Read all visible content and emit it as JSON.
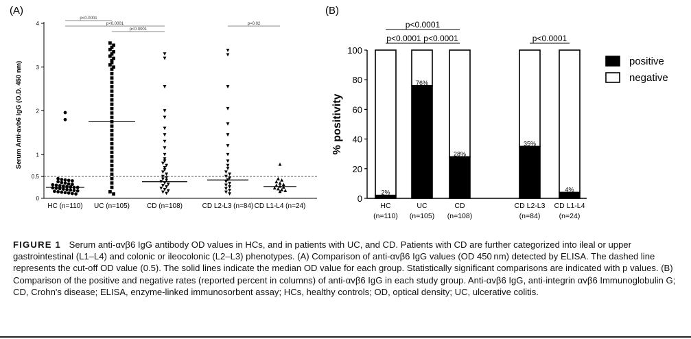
{
  "figure": {
    "label": "FIGURE 1",
    "caption": "Serum anti-αvβ6 IgG antibody OD values in HCs, and in patients with UC, and CD. Patients with CD are further categorized into ileal or upper gastrointestinal (L1–L4) and colonic or ileocolonic (L2–L3) phenotypes. (A) Comparison of anti-αvβ6 IgG values (OD 450 nm) detected by ELISA. The dashed line represents the cut-off OD value (0.5). The solid lines indicate the median OD value for each group. Statistically significant comparisons are indicated with p values. (B) Comparison of the positive and negative rates (reported percent in columns) of anti-αvβ6 IgG in each study group. Anti-αvβ6 IgG, anti-integrin αvβ6 Immunoglobulin G; CD, Crohn's disease; ELISA, enzyme-linked immunosorbent assay; HCs, healthy controls; OD, optical density; UC, ulcerative colitis."
  },
  "chart_data": [
    {
      "type": "scatter",
      "panel_label": "(A)",
      "ylabel": "Serum Anti-avb6 IgG (O.D. 450 nm)",
      "ylim": [
        0,
        4
      ],
      "yticks": [
        "0",
        "0.5",
        "1",
        "2",
        "3",
        "4"
      ],
      "cutoff": 0.5,
      "categories": [
        "HC (n=110)",
        "UC (n=105)",
        "CD (n=108)",
        "CD L2-L3 (n=84)",
        "CD L1-L4 (n=24)"
      ],
      "medians": [
        0.25,
        1.75,
        0.38,
        0.42,
        0.27
      ],
      "series": [
        {
          "values": [
            1.96,
            1.8,
            0.45,
            0.43,
            0.42,
            0.41,
            0.4,
            0.38,
            0.36,
            0.35,
            0.33,
            0.32,
            0.31,
            0.3,
            0.29,
            0.28,
            0.27,
            0.26,
            0.25,
            0.25,
            0.24,
            0.23,
            0.22,
            0.21,
            0.2,
            0.19,
            0.18,
            0.17,
            0.16,
            0.15,
            0.14,
            0.13,
            0.12,
            0.11,
            0.1
          ]
        },
        {
          "values": [
            3.55,
            3.5,
            3.45,
            3.4,
            3.35,
            3.3,
            3.25,
            3.2,
            3.15,
            3.1,
            3.05,
            3.0,
            2.95,
            2.85,
            2.75,
            2.65,
            2.55,
            2.45,
            2.35,
            2.25,
            2.15,
            2.05,
            1.95,
            1.85,
            1.75,
            1.65,
            1.55,
            1.45,
            1.35,
            1.25,
            1.15,
            1.05,
            0.95,
            0.85,
            0.75,
            0.65,
            0.55,
            0.45,
            0.35,
            0.25,
            0.15,
            0.1
          ]
        },
        {
          "values": [
            3.3,
            3.2,
            2.55,
            2.0,
            1.85,
            1.6,
            1.45,
            1.3,
            1.15,
            1.0,
            0.9,
            0.85,
            0.8,
            0.75,
            0.7,
            0.65,
            0.6,
            0.55,
            0.5,
            0.47,
            0.44,
            0.41,
            0.38,
            0.35,
            0.32,
            0.29,
            0.26,
            0.23,
            0.2,
            0.17,
            0.14,
            0.11
          ]
        },
        {
          "values": [
            3.38,
            3.28,
            2.55,
            2.05,
            1.7,
            1.45,
            1.2,
            1.0,
            0.85,
            0.75,
            0.68,
            0.6,
            0.55,
            0.5,
            0.46,
            0.42,
            0.38,
            0.34,
            0.3,
            0.26,
            0.22,
            0.18,
            0.14,
            0.1
          ]
        },
        {
          "values": [
            0.78,
            0.45,
            0.42,
            0.38,
            0.35,
            0.32,
            0.3,
            0.28,
            0.26,
            0.24,
            0.22,
            0.2,
            0.18,
            0.16
          ]
        }
      ],
      "comparisons": [
        {
          "label": "p<0.0001",
          "from": 0,
          "to": 1
        },
        {
          "label": "p<0.0001",
          "from": 0,
          "to": 2
        },
        {
          "label": "p<0.0001",
          "from": 1,
          "to": 2
        },
        {
          "label": "p=0.02",
          "from": 3,
          "to": 4
        }
      ]
    },
    {
      "type": "bar",
      "panel_label": "(B)",
      "ylabel": "% positivity",
      "ylim": [
        0,
        100
      ],
      "yticks": [
        "0",
        "20",
        "40",
        "60",
        "80",
        "100"
      ],
      "categories": [
        {
          "line1": "HC",
          "line2": "(n=110)"
        },
        {
          "line1": "UC",
          "line2": "(n=105)"
        },
        {
          "line1": "CD",
          "line2": "(n=108)"
        },
        {
          "line1": "CD L2-L3",
          "line2": "(n=84)"
        },
        {
          "line1": "CD L1-L4",
          "line2": "(n=24)"
        }
      ],
      "series": [
        {
          "name": "positive",
          "values": [
            2,
            76,
            28,
            35,
            4
          ],
          "color": "#000000"
        },
        {
          "name": "negative",
          "values": [
            98,
            24,
            72,
            65,
            96
          ],
          "color": "#ffffff"
        }
      ],
      "data_labels": [
        "2%",
        "76%",
        "28%",
        "35%",
        "4%"
      ],
      "legend_position": "top-right",
      "comparisons": [
        {
          "label": "p<0.0001",
          "from": 0,
          "to": 2
        },
        {
          "label": "p<0.0001",
          "from": 0,
          "to": 1
        },
        {
          "label": "p<0.0001",
          "from": 1,
          "to": 2
        },
        {
          "label": "p<0.0001",
          "from": 3,
          "to": 4
        }
      ]
    }
  ]
}
